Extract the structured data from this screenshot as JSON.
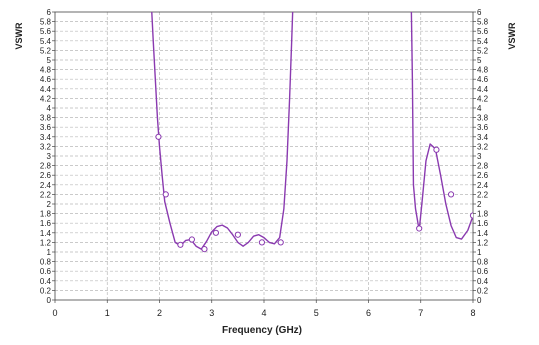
{
  "chart_data": {
    "type": "line",
    "xlabel": "Frequency (GHz)",
    "ylabel": "VSWR",
    "y2label": "VSWR",
    "xlim": [
      0,
      8
    ],
    "ylim": [
      0,
      6
    ],
    "x_ticks": [
      0,
      1,
      2,
      3,
      4,
      5,
      6,
      7,
      8
    ],
    "y_ticks": [
      0,
      0.2,
      0.4,
      0.6,
      0.8,
      1,
      1.2,
      1.4,
      1.6,
      1.8,
      2,
      2.2,
      2.4,
      2.6,
      2.8,
      3,
      3.2,
      3.4,
      3.6,
      3.8,
      4,
      4.2,
      4.4,
      4.6,
      4.8,
      5,
      5.2,
      5.4,
      5.6,
      5.8,
      6
    ],
    "grid": true,
    "colors": {
      "series": "#8a3ab0",
      "grid": "#b8b8b8",
      "axis": "#444444",
      "text": "#222222"
    },
    "series": [
      {
        "segments": [
          [
            [
              1.85,
              6.05
            ],
            [
              1.88,
              5.4
            ],
            [
              1.92,
              4.6
            ],
            [
              1.96,
              3.8
            ],
            [
              2.0,
              3.2
            ],
            [
              2.05,
              2.6
            ],
            [
              2.1,
              2.05
            ],
            [
              2.2,
              1.6
            ],
            [
              2.3,
              1.2
            ],
            [
              2.4,
              1.13
            ],
            [
              2.5,
              1.24
            ],
            [
              2.6,
              1.26
            ],
            [
              2.7,
              1.12
            ],
            [
              2.8,
              1.06
            ],
            [
              2.9,
              1.22
            ],
            [
              3.0,
              1.42
            ],
            [
              3.1,
              1.53
            ],
            [
              3.2,
              1.56
            ],
            [
              3.3,
              1.5
            ],
            [
              3.4,
              1.36
            ],
            [
              3.5,
              1.2
            ],
            [
              3.6,
              1.12
            ],
            [
              3.7,
              1.2
            ],
            [
              3.8,
              1.33
            ],
            [
              3.9,
              1.36
            ],
            [
              4.0,
              1.3
            ],
            [
              4.1,
              1.2
            ],
            [
              4.2,
              1.17
            ],
            [
              4.3,
              1.3
            ],
            [
              4.38,
              1.9
            ],
            [
              4.44,
              2.9
            ],
            [
              4.49,
              4.2
            ],
            [
              4.53,
              5.4
            ],
            [
              4.55,
              6.05
            ]
          ],
          [
            [
              6.82,
              6.05
            ],
            [
              6.84,
              4.6
            ],
            [
              6.86,
              2.4
            ],
            [
              6.9,
              1.9
            ],
            [
              6.97,
              1.45
            ],
            [
              7.03,
              2.1
            ],
            [
              7.1,
              2.9
            ],
            [
              7.18,
              3.25
            ],
            [
              7.28,
              3.15
            ],
            [
              7.38,
              2.6
            ],
            [
              7.48,
              2.0
            ],
            [
              7.58,
              1.55
            ],
            [
              7.68,
              1.3
            ],
            [
              7.78,
              1.27
            ],
            [
              7.9,
              1.45
            ],
            [
              8.0,
              1.75
            ]
          ]
        ],
        "markers": [
          [
            1.98,
            3.4
          ],
          [
            2.12,
            2.2
          ],
          [
            2.4,
            1.15
          ],
          [
            2.62,
            1.26
          ],
          [
            2.86,
            1.06
          ],
          [
            3.08,
            1.4
          ],
          [
            3.5,
            1.36
          ],
          [
            3.96,
            1.2
          ],
          [
            4.32,
            1.2
          ],
          [
            6.97,
            1.49
          ],
          [
            7.3,
            3.13
          ],
          [
            7.58,
            2.2
          ],
          [
            8.0,
            1.76
          ]
        ]
      }
    ]
  }
}
